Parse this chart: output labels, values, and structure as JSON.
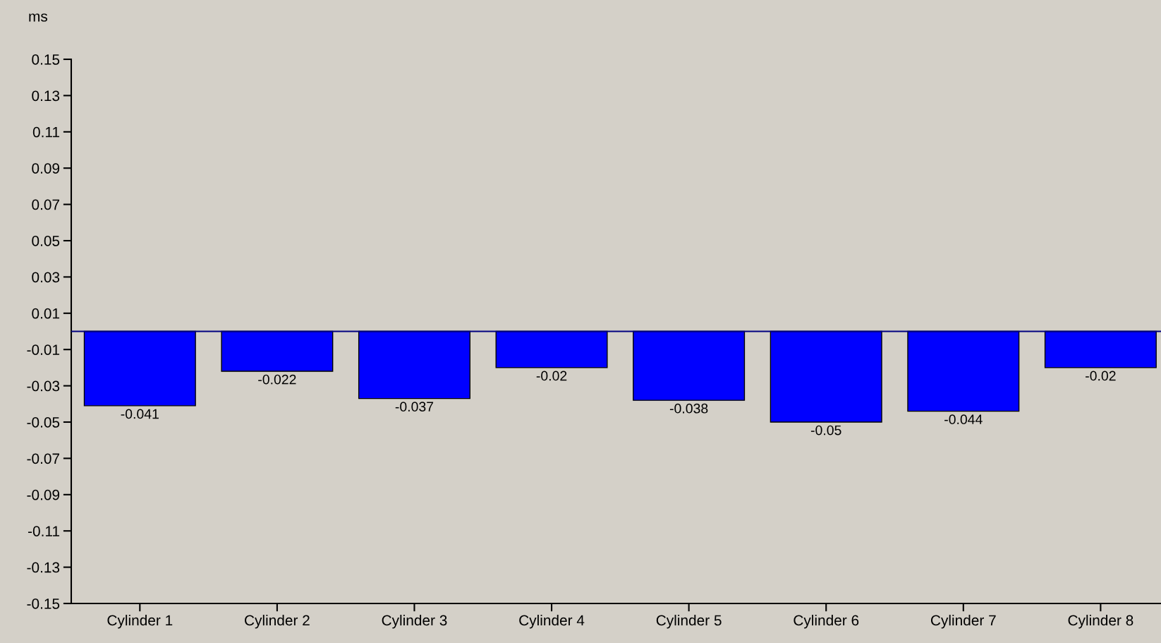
{
  "chart_data": {
    "type": "bar",
    "ylabel": "ms",
    "categories": [
      "Cylinder 1",
      "Cylinder 2",
      "Cylinder 3",
      "Cylinder 4",
      "Cylinder 5",
      "Cylinder 6",
      "Cylinder 7",
      "Cylinder 8"
    ],
    "values": [
      -0.041,
      -0.022,
      -0.037,
      -0.02,
      -0.038,
      -0.05,
      -0.044,
      -0.02
    ],
    "color": "#0000ff",
    "ylim": [
      -0.15,
      0.15
    ],
    "yticks": [
      -0.15,
      -0.13,
      -0.11,
      -0.09,
      -0.07,
      -0.05,
      -0.03,
      -0.01,
      0.01,
      0.03,
      0.05,
      0.07,
      0.09,
      0.11,
      0.13,
      0.15
    ],
    "ref_lines": [
      {
        "axis": "y",
        "value": 0,
        "color": "#000080"
      }
    ],
    "data_labels": true,
    "grid": false,
    "legend": false
  }
}
